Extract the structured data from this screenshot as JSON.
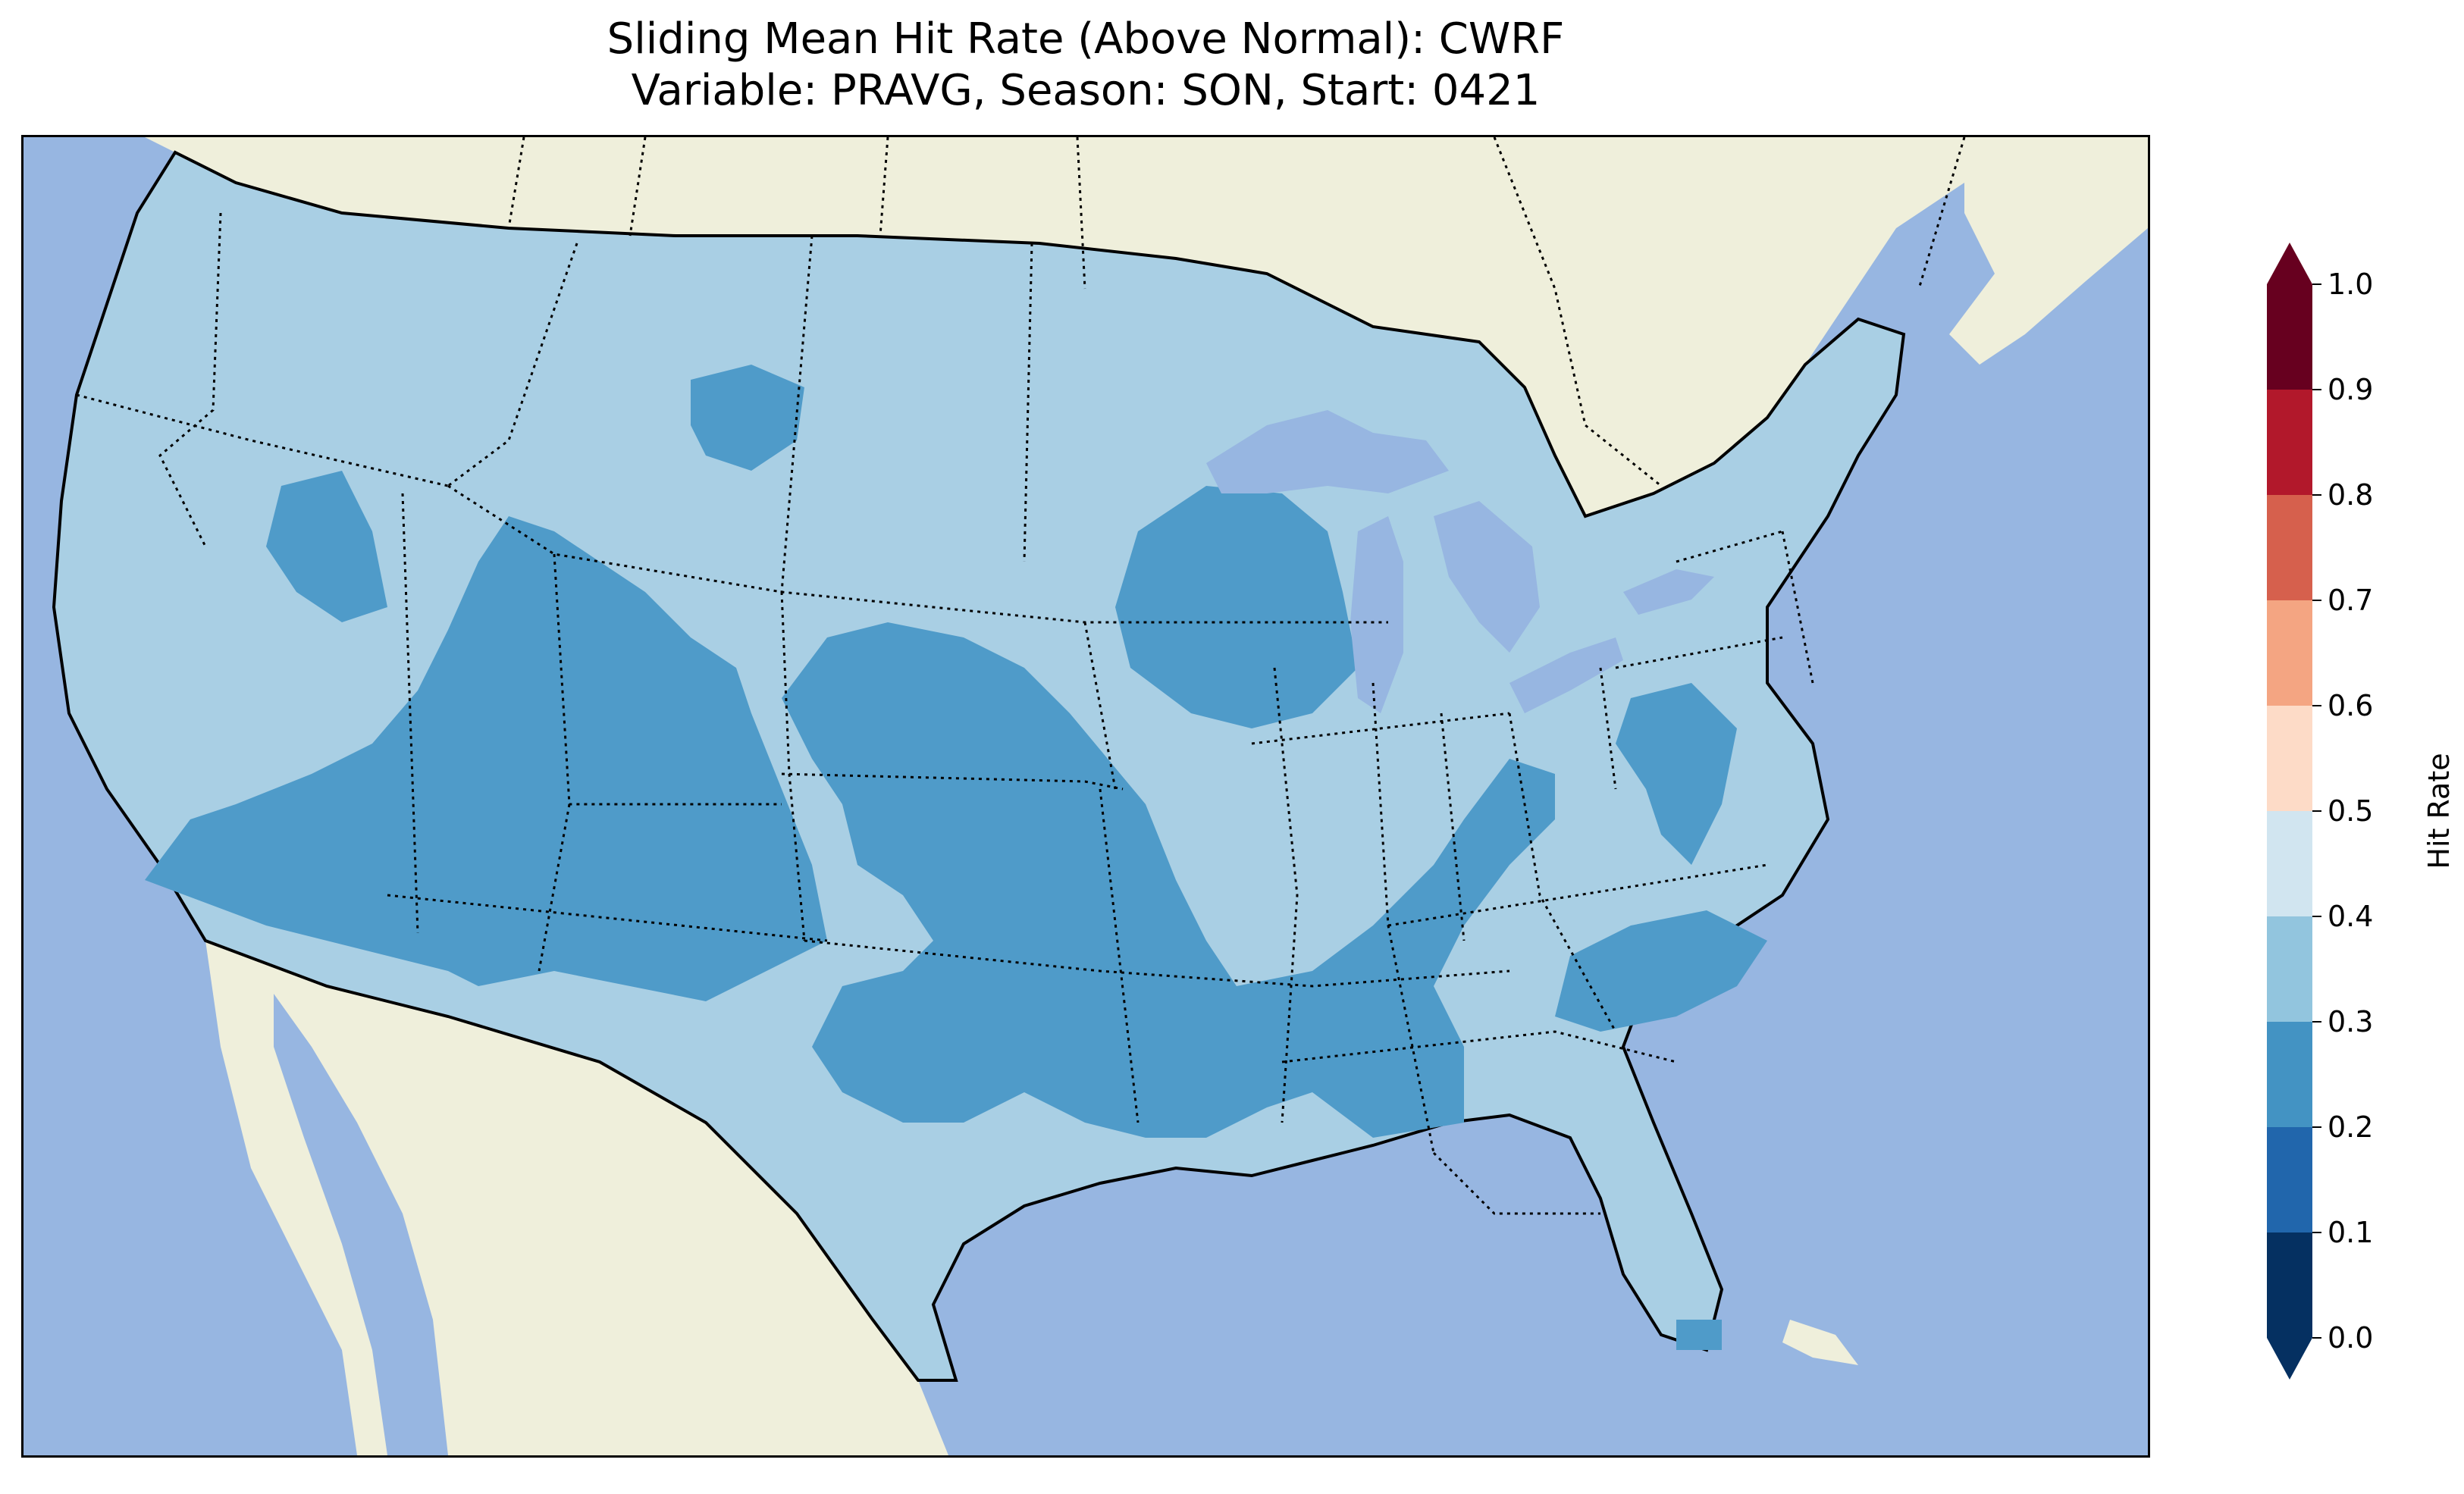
{
  "title": {
    "line1": "Sliding Mean Hit Rate (Above Normal): CWRF",
    "line2": "Variable: PRAVG, Season: SON, Start: 0421"
  },
  "colors": {
    "ocean": "#97b6e1",
    "land": "#efefdb",
    "lakes": "#97b6e1",
    "hit_0_2_0_3": "#4f9bc9",
    "hit_0_3_0_4": "#a9cfe4"
  },
  "colorbar": {
    "label": "Hit Rate",
    "ticks": [
      "0.0",
      "0.1",
      "0.2",
      "0.3",
      "0.4",
      "0.5",
      "0.6",
      "0.7",
      "0.8",
      "0.9",
      "1.0"
    ],
    "bins": [
      {
        "from": 0.0,
        "to": 0.1,
        "color": "#053061"
      },
      {
        "from": 0.1,
        "to": 0.2,
        "color": "#2166ac"
      },
      {
        "from": 0.2,
        "to": 0.3,
        "color": "#4393c3"
      },
      {
        "from": 0.3,
        "to": 0.4,
        "color": "#92c5de"
      },
      {
        "from": 0.4,
        "to": 0.5,
        "color": "#d1e5f0"
      },
      {
        "from": 0.5,
        "to": 0.6,
        "color": "#fddbc7"
      },
      {
        "from": 0.6,
        "to": 0.7,
        "color": "#f4a582"
      },
      {
        "from": 0.7,
        "to": 0.8,
        "color": "#d6604d"
      },
      {
        "from": 0.8,
        "to": 0.9,
        "color": "#b2182b"
      },
      {
        "from": 0.9,
        "to": 1.0,
        "color": "#67001f"
      }
    ],
    "extend_low_color": "#053061",
    "extend_high_color": "#67001f"
  }
}
